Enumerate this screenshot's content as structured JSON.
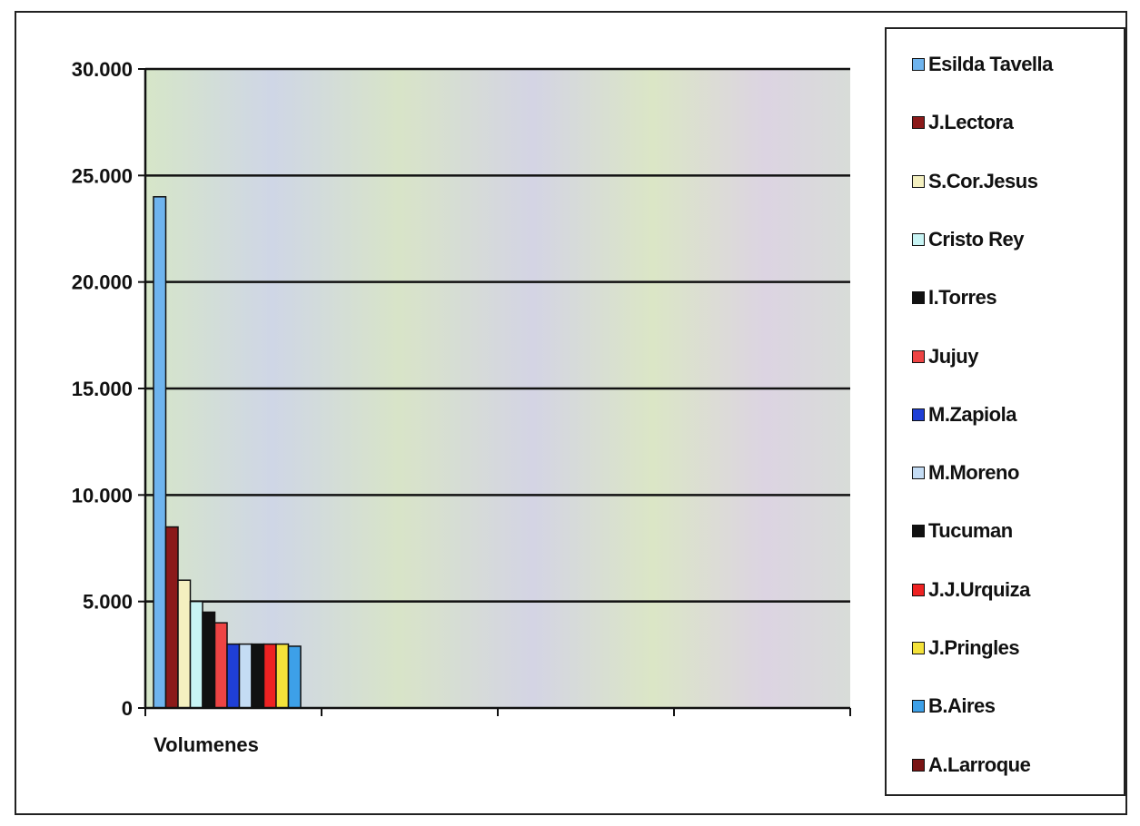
{
  "chart_data": {
    "type": "bar",
    "categories": [
      "Volumenes",
      "",
      "",
      ""
    ],
    "ylim": [
      0,
      30000
    ],
    "yticks": [
      "0",
      "5.000",
      "10.000",
      "15.000",
      "20.000",
      "25.000",
      "30.000"
    ],
    "ytick_values": [
      0,
      5000,
      10000,
      15000,
      20000,
      25000,
      30000
    ],
    "grid": true,
    "legend_position": "right",
    "series": [
      {
        "name": "Esilda Tavella",
        "color": "#6fb4ee",
        "values": [
          24000,
          0,
          0,
          0
        ]
      },
      {
        "name": "J.Lectora",
        "color": "#8b1a1a",
        "values": [
          8500,
          0,
          0,
          0
        ]
      },
      {
        "name": "S.Cor.Jesus",
        "color": "#f4f0c0",
        "values": [
          6000,
          0,
          0,
          0
        ]
      },
      {
        "name": "Cristo Rey",
        "color": "#c8f4f4",
        "values": [
          5000,
          0,
          0,
          0
        ]
      },
      {
        "name": "I.Torres",
        "color": "#111111",
        "values": [
          4500,
          0,
          0,
          0
        ]
      },
      {
        "name": "Jujuy",
        "color": "#ee4444",
        "values": [
          4000,
          0,
          0,
          0
        ]
      },
      {
        "name": "M.Zapiola",
        "color": "#1f3fd6",
        "values": [
          3000,
          0,
          0,
          0
        ]
      },
      {
        "name": "M.Moreno",
        "color": "#c4dcf4",
        "values": [
          3000,
          0,
          0,
          0
        ]
      },
      {
        "name": "Tucuman",
        "color": "#111111",
        "values": [
          3000,
          0,
          0,
          0
        ]
      },
      {
        "name": "J.J.Urquiza",
        "color": "#ee2222",
        "values": [
          3000,
          0,
          0,
          0
        ]
      },
      {
        "name": "J.Pringles",
        "color": "#f4e23a",
        "values": [
          3000,
          0,
          0,
          0
        ]
      },
      {
        "name": "B.Aires",
        "color": "#3da0e8",
        "values": [
          2900,
          0,
          0,
          0
        ]
      },
      {
        "name": "A.Larroque",
        "color": "#7a1414",
        "values": [
          0,
          0,
          0,
          0
        ]
      }
    ]
  }
}
